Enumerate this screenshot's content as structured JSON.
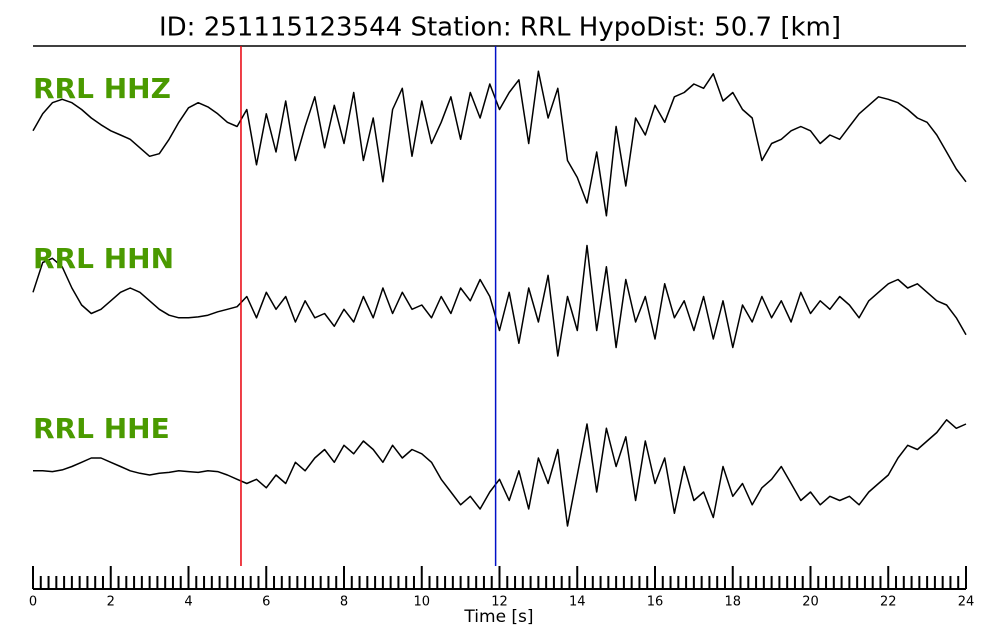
{
  "chart_data": {
    "type": "line",
    "title": "ID: 251115123544   Station: RRL   HypoDist:    50.7 [km]",
    "xlabel": "Time [s]",
    "xlim": [
      0,
      24
    ],
    "xticks": [
      0,
      2,
      4,
      6,
      8,
      10,
      12,
      14,
      16,
      18,
      20,
      22,
      24
    ],
    "xminorticks": [
      0.2,
      0.4,
      0.6,
      0.8,
      1,
      1.2,
      1.4,
      1.6,
      1.8,
      2.2,
      2.4,
      2.6,
      2.8,
      3,
      3.2,
      3.4,
      3.6,
      3.8,
      4.2,
      4.4,
      4.6,
      4.8,
      5,
      5.2,
      5.4,
      5.6,
      5.8,
      6.2,
      6.4,
      6.6,
      6.8,
      7,
      7.2,
      7.4,
      7.6,
      7.8,
      8.2,
      8.4,
      8.6,
      8.8,
      9,
      9.2,
      9.4,
      9.6,
      9.8,
      10.2,
      10.4,
      10.6,
      10.8,
      11,
      11.2,
      11.4,
      11.6,
      11.8,
      12.2,
      12.4,
      12.6,
      12.8,
      13,
      13.2,
      13.4,
      13.6,
      13.8,
      14.2,
      14.4,
      14.6,
      14.8,
      15,
      15.2,
      15.4,
      15.6,
      15.8,
      16.2,
      16.4,
      16.6,
      16.8,
      17,
      17.2,
      17.4,
      17.6,
      17.8,
      18.2,
      18.4,
      18.6,
      18.8,
      19,
      19.2,
      19.4,
      19.6,
      19.8,
      20.2,
      20.4,
      20.6,
      20.8,
      21,
      21.2,
      21.4,
      21.6,
      21.8,
      22.2,
      22.4,
      22.6,
      22.8,
      23,
      23.2,
      23.4,
      23.6,
      23.8
    ],
    "ylim": [
      -1,
      1
    ],
    "label_color": "#4a9a00",
    "vlines": [
      {
        "x": 5.35,
        "color": "#e8000b"
      },
      {
        "x": 11.9,
        "color": "#0010c8"
      }
    ],
    "x": [
      0,
      0.25,
      0.5,
      0.75,
      1,
      1.25,
      1.5,
      1.75,
      2,
      2.25,
      2.5,
      2.75,
      3,
      3.25,
      3.5,
      3.75,
      4,
      4.25,
      4.5,
      4.75,
      5,
      5.25,
      5.5,
      5.75,
      6,
      6.25,
      6.5,
      6.75,
      7,
      7.25,
      7.5,
      7.75,
      8,
      8.25,
      8.5,
      8.75,
      9,
      9.25,
      9.5,
      9.75,
      10,
      10.25,
      10.5,
      10.75,
      11,
      11.25,
      11.5,
      11.75,
      12,
      12.25,
      12.5,
      12.75,
      13,
      13.25,
      13.5,
      13.75,
      14,
      14.25,
      14.5,
      14.75,
      15,
      15.25,
      15.5,
      15.75,
      16,
      16.25,
      16.5,
      16.75,
      17,
      17.25,
      17.5,
      17.75,
      18,
      18.25,
      18.5,
      18.75,
      19,
      19.25,
      19.5,
      19.75,
      20,
      20.25,
      20.5,
      20.75,
      21,
      21.25,
      21.5,
      21.75,
      22,
      22.25,
      22.5,
      22.75,
      23,
      23.25,
      23.5,
      23.75,
      24
    ],
    "series": [
      {
        "name": "RRL HHZ",
        "color": "#000000",
        "values": [
          0.05,
          0.25,
          0.38,
          0.42,
          0.38,
          0.3,
          0.2,
          0.12,
          0.05,
          0.0,
          -0.05,
          -0.15,
          -0.25,
          -0.22,
          -0.05,
          0.15,
          0.32,
          0.38,
          0.33,
          0.25,
          0.15,
          0.1,
          0.3,
          -0.35,
          0.25,
          -0.2,
          0.4,
          -0.3,
          0.1,
          0.45,
          -0.15,
          0.35,
          -0.1,
          0.5,
          -0.3,
          0.2,
          -0.55,
          0.3,
          0.55,
          -0.25,
          0.4,
          -0.1,
          0.15,
          0.45,
          -0.05,
          0.5,
          0.2,
          0.6,
          0.3,
          0.5,
          0.65,
          -0.1,
          0.75,
          0.2,
          0.55,
          -0.3,
          -0.5,
          -0.8,
          -0.2,
          -0.95,
          0.1,
          -0.6,
          0.2,
          0.0,
          0.35,
          0.15,
          0.45,
          0.5,
          0.6,
          0.55,
          0.72,
          0.4,
          0.5,
          0.3,
          0.2,
          -0.3,
          -0.1,
          -0.05,
          0.05,
          0.1,
          0.05,
          -0.1,
          0.0,
          -0.05,
          0.1,
          0.25,
          0.35,
          0.45,
          0.42,
          0.38,
          0.3,
          0.2,
          0.15,
          0.0,
          -0.2,
          -0.4,
          -0.55
        ]
      },
      {
        "name": "RRL HHN",
        "color": "#000000",
        "values": [
          0.15,
          0.5,
          0.55,
          0.45,
          0.2,
          0.0,
          -0.1,
          -0.05,
          0.05,
          0.15,
          0.2,
          0.15,
          0.05,
          -0.05,
          -0.12,
          -0.15,
          -0.15,
          -0.14,
          -0.12,
          -0.08,
          -0.05,
          -0.02,
          0.1,
          -0.15,
          0.15,
          -0.05,
          0.1,
          -0.2,
          0.05,
          -0.15,
          -0.1,
          -0.25,
          -0.05,
          -0.2,
          0.1,
          -0.15,
          0.2,
          -0.1,
          0.15,
          -0.05,
          0.0,
          -0.15,
          0.1,
          -0.1,
          0.2,
          0.05,
          0.3,
          0.1,
          -0.3,
          0.15,
          -0.45,
          0.2,
          -0.2,
          0.35,
          -0.6,
          0.1,
          -0.3,
          0.7,
          -0.3,
          0.45,
          -0.5,
          0.3,
          -0.2,
          0.1,
          -0.4,
          0.25,
          -0.15,
          0.05,
          -0.3,
          0.1,
          -0.4,
          0.05,
          -0.5,
          0.0,
          -0.2,
          0.1,
          -0.15,
          0.05,
          -0.2,
          0.15,
          -0.1,
          0.05,
          -0.05,
          0.1,
          0.0,
          -0.15,
          0.05,
          0.15,
          0.25,
          0.3,
          0.2,
          0.25,
          0.15,
          0.05,
          0.0,
          -0.15,
          -0.35
        ]
      },
      {
        "name": "RRL HHE",
        "color": "#000000",
        "values": [
          0.05,
          0.05,
          0.04,
          0.06,
          0.1,
          0.15,
          0.2,
          0.2,
          0.15,
          0.1,
          0.05,
          0.02,
          0.0,
          0.02,
          0.03,
          0.05,
          0.04,
          0.03,
          0.05,
          0.04,
          0.0,
          -0.05,
          -0.1,
          -0.05,
          -0.15,
          0.0,
          -0.1,
          0.15,
          0.05,
          0.2,
          0.3,
          0.15,
          0.35,
          0.25,
          0.4,
          0.3,
          0.15,
          0.35,
          0.2,
          0.3,
          0.25,
          0.15,
          -0.05,
          -0.2,
          -0.35,
          -0.25,
          -0.4,
          -0.2,
          -0.05,
          -0.3,
          0.05,
          -0.4,
          0.2,
          -0.1,
          0.3,
          -0.6,
          0.0,
          0.6,
          -0.2,
          0.55,
          0.1,
          0.45,
          -0.3,
          0.4,
          -0.1,
          0.2,
          -0.45,
          0.1,
          -0.3,
          -0.2,
          -0.5,
          0.1,
          -0.25,
          -0.1,
          -0.35,
          -0.15,
          -0.05,
          0.1,
          -0.1,
          -0.3,
          -0.2,
          -0.35,
          -0.25,
          -0.3,
          -0.25,
          -0.35,
          -0.2,
          -0.1,
          0.0,
          0.2,
          0.35,
          0.3,
          0.4,
          0.5,
          0.65,
          0.55,
          0.6
        ]
      }
    ]
  }
}
